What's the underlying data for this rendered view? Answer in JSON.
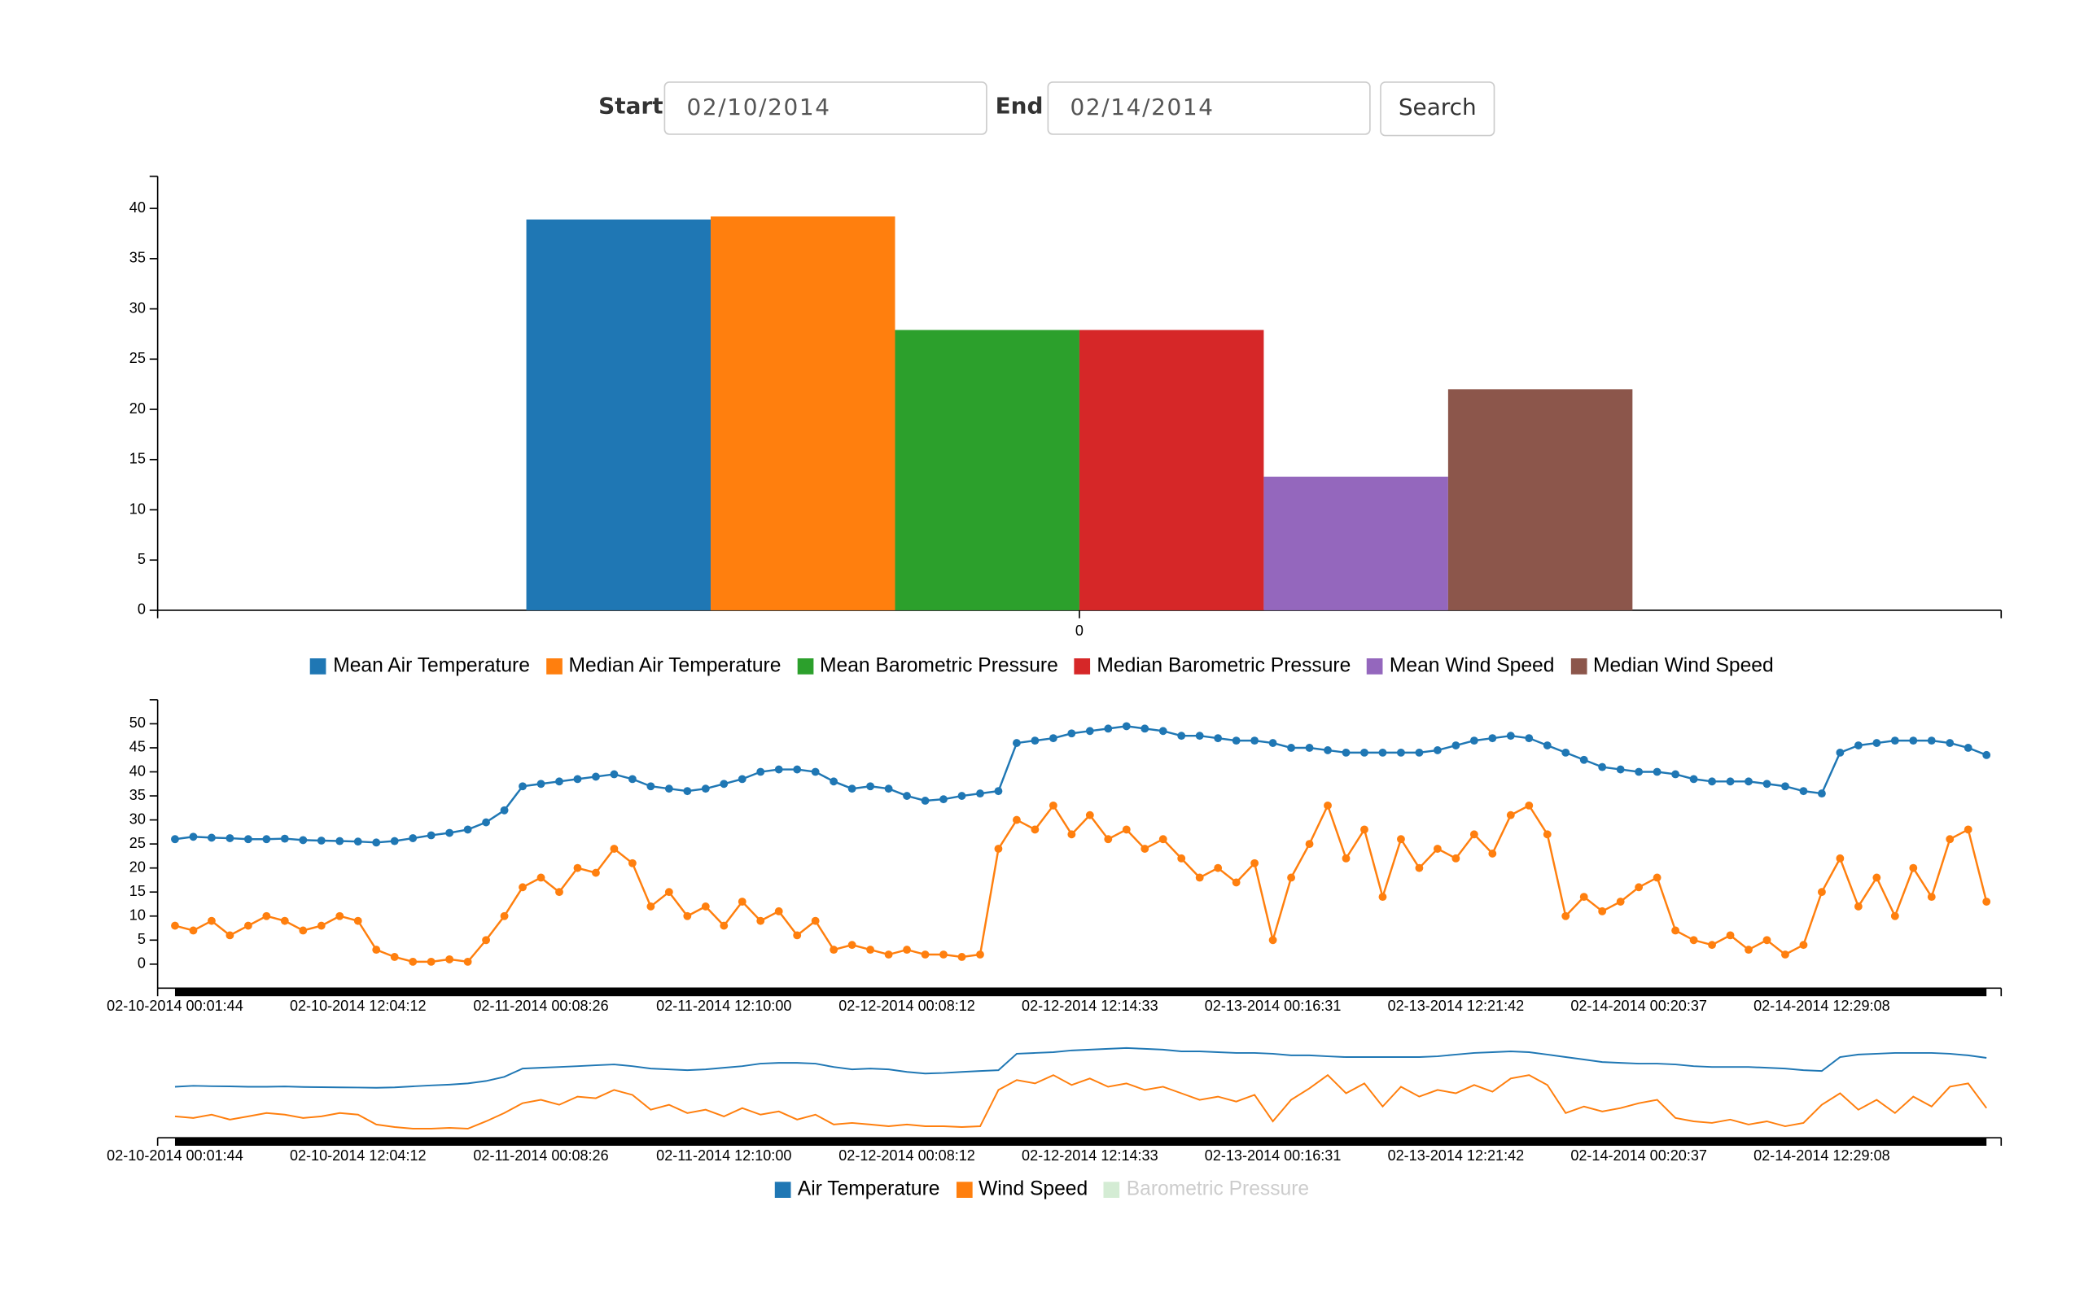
{
  "form": {
    "start_label": "Start",
    "start_value": "02/10/2014",
    "end_label": "End",
    "end_value": "02/14/2014",
    "button": "Search"
  },
  "chart_data": [
    {
      "type": "bar",
      "categories": [
        "0"
      ],
      "series": [
        {
          "name": "Mean Air Temperature",
          "color": "#1f77b4",
          "values": [
            38.9
          ]
        },
        {
          "name": "Median Air Temperature",
          "color": "#ff7f0e",
          "values": [
            39.2
          ]
        },
        {
          "name": "Mean Barometric Pressure",
          "color": "#2ca02c",
          "values": [
            27.9
          ]
        },
        {
          "name": "Median Barometric Pressure",
          "color": "#d62728",
          "values": [
            27.9
          ]
        },
        {
          "name": "Mean Wind Speed",
          "color": "#9467bd",
          "values": [
            13.3
          ]
        },
        {
          "name": "Median Wind Speed",
          "color": "#8c564b",
          "values": [
            22.0
          ]
        }
      ],
      "ylim": [
        0,
        43.2
      ],
      "yticks": [
        0,
        5,
        10,
        15,
        20,
        25,
        30,
        35,
        40
      ]
    },
    {
      "type": "line",
      "categories": [
        "02-10-2014 00:01:44",
        null,
        null,
        null,
        null,
        null,
        null,
        null,
        null,
        null,
        "02-10-2014 12:04:12",
        null,
        null,
        null,
        null,
        null,
        null,
        null,
        null,
        null,
        "02-11-2014 00:08:26",
        null,
        null,
        null,
        null,
        null,
        null,
        null,
        null,
        null,
        "02-11-2014 12:10:00",
        null,
        null,
        null,
        null,
        null,
        null,
        null,
        null,
        null,
        "02-12-2014 00:08:12",
        null,
        null,
        null,
        null,
        null,
        null,
        null,
        null,
        null,
        "02-12-2014 12:14:33",
        null,
        null,
        null,
        null,
        null,
        null,
        null,
        null,
        null,
        "02-13-2014 00:16:31",
        null,
        null,
        null,
        null,
        null,
        null,
        null,
        null,
        null,
        "02-13-2014 12:21:42",
        null,
        null,
        null,
        null,
        null,
        null,
        null,
        null,
        null,
        "02-14-2014 00:20:37",
        null,
        null,
        null,
        null,
        null,
        null,
        null,
        null,
        null,
        "02-14-2014 12:29:08",
        null,
        null,
        null,
        null,
        null,
        null,
        null,
        null,
        null
      ],
      "series": [
        {
          "name": "Air Temperature",
          "color": "#1f77b4",
          "values": [
            26,
            26.5,
            26.3,
            26.2,
            26,
            26,
            26.1,
            25.8,
            25.7,
            25.6,
            25.5,
            25.3,
            25.6,
            26.2,
            26.8,
            27.3,
            28,
            29.5,
            32,
            37,
            37.5,
            38,
            38.5,
            39,
            39.5,
            38.5,
            37,
            36.5,
            36,
            36.5,
            37.5,
            38.5,
            40,
            40.5,
            40.5,
            40,
            38,
            36.5,
            37,
            36.5,
            35,
            34,
            34.3,
            35,
            35.5,
            36,
            46,
            46.5,
            47,
            48,
            48.5,
            49,
            49.5,
            49,
            48.5,
            47.5,
            47.5,
            47,
            46.5,
            46.5,
            46,
            45,
            45,
            44.5,
            44,
            44,
            44,
            44,
            44,
            44.5,
            45.5,
            46.5,
            47,
            47.5,
            47,
            45.5,
            44,
            42.5,
            41,
            40.5,
            40,
            40,
            39.5,
            38.5,
            38,
            38,
            38,
            37.5,
            37,
            36,
            35.5,
            44,
            45.5,
            46,
            46.5,
            46.5,
            46.5,
            46,
            45,
            43.5
          ]
        },
        {
          "name": "Wind Speed",
          "color": "#ff7f0e",
          "values": [
            8,
            7,
            9,
            6,
            8,
            10,
            9,
            7,
            8,
            10,
            9,
            3,
            1.5,
            0.5,
            0.5,
            1,
            0.5,
            5,
            10,
            16,
            18,
            15,
            20,
            19,
            24,
            21,
            12,
            15,
            10,
            12,
            8,
            13,
            9,
            11,
            6,
            9,
            3,
            4,
            3,
            2,
            3,
            2,
            2,
            1.5,
            2,
            24,
            30,
            28,
            33,
            27,
            31,
            26,
            28,
            24,
            26,
            22,
            18,
            20,
            17,
            21,
            5,
            18,
            25,
            33,
            22,
            28,
            14,
            26,
            20,
            24,
            22,
            27,
            23,
            31,
            33,
            27,
            10,
            14,
            11,
            13,
            16,
            18,
            7,
            5,
            4,
            6,
            3,
            5,
            2,
            4,
            15,
            22,
            12,
            18,
            10,
            20,
            14,
            26,
            28,
            13
          ]
        }
      ],
      "hidden_series": [
        {
          "name": "Barometric Pressure",
          "color": "#2ca02c"
        }
      ],
      "ylim": [
        -5,
        55
      ],
      "yticks": [
        0,
        5,
        10,
        15,
        20,
        25,
        30,
        35,
        40,
        45,
        50
      ]
    }
  ]
}
